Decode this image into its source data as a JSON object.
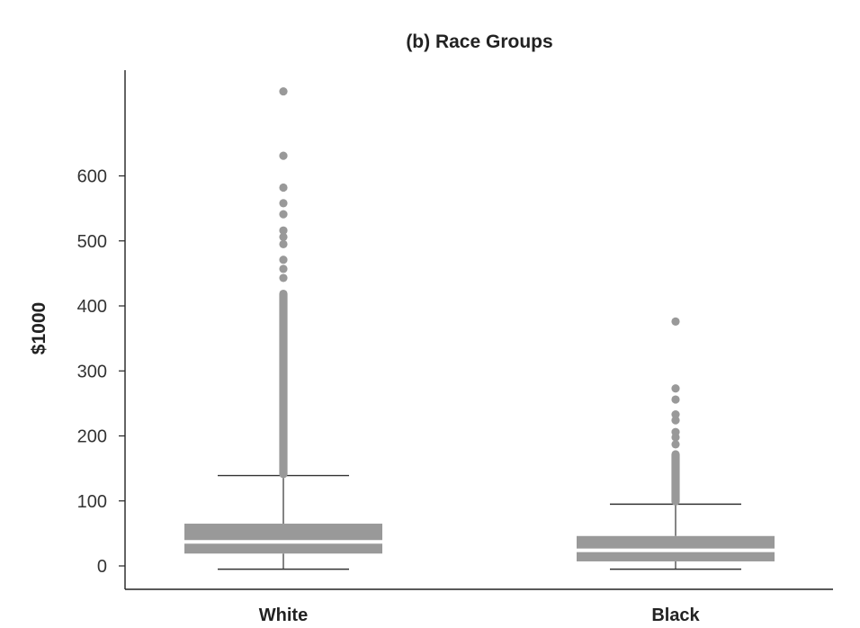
{
  "chart_data": {
    "type": "box",
    "title": "(b) Race Groups",
    "xlabel": "",
    "ylabel": "$1000",
    "ylim": [
      -38,
      760
    ],
    "yticks": [
      0,
      100,
      200,
      300,
      400,
      500,
      600
    ],
    "categories": [
      "White",
      "Black"
    ],
    "series": [
      {
        "category": "White",
        "whisker_low": -5,
        "q1": 19,
        "median": 37,
        "q3": 65,
        "whisker_high": 139,
        "outlier_column": [
          135,
          425
        ],
        "outliers": [
          443,
          457,
          471,
          495,
          506,
          516,
          541,
          558,
          582,
          631,
          730
        ]
      },
      {
        "category": "Black",
        "whisker_low": -5,
        "q1": 7,
        "median": 24,
        "q3": 46,
        "whisker_high": 95,
        "outlier_column": [
          93,
          178
        ],
        "outliers": [
          187,
          198,
          206,
          224,
          233,
          256,
          273,
          376
        ]
      }
    ],
    "colors": {
      "box": "#999999",
      "median_gap": "#ffffff",
      "whisker": "#333333",
      "axis": "#222222",
      "outlier": "#999999"
    },
    "grid": false,
    "legend": "none"
  }
}
